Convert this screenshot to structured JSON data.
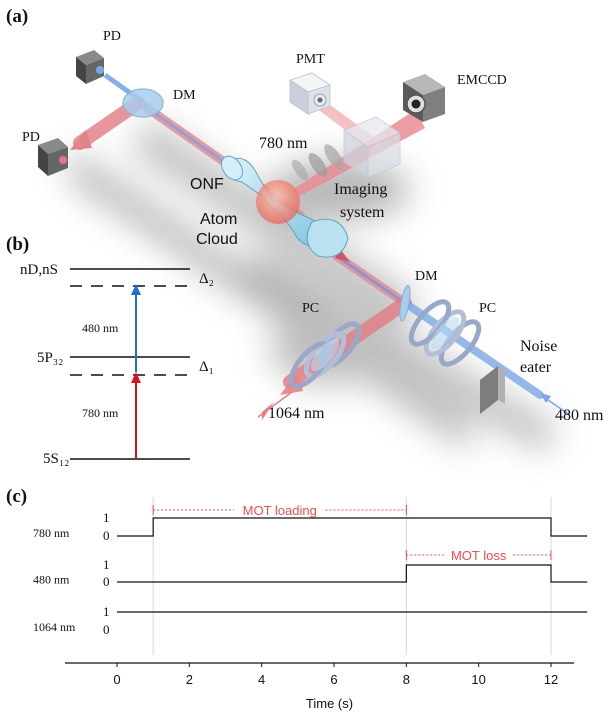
{
  "panels": {
    "a": "(a)",
    "b": "(b)",
    "c": "(c)"
  },
  "setup_labels": {
    "pd_top": "PD",
    "pd_left": "PD",
    "dm_top": "DM",
    "pmt": "PMT",
    "emccd": "EMCCD",
    "wavelength_780": "780 nm",
    "onf": "ONF",
    "imaging_line1": "Imaging",
    "imaging_line2": "system",
    "atom_line1": "Atom",
    "atom_line2": "Cloud",
    "dm_right": "DM",
    "pc_left": "PC",
    "pc_right": "PC",
    "noise_line1": "Noise",
    "noise_line2": "eater",
    "wavelength_1064": "1064 nm",
    "wavelength_480": "480 nm"
  },
  "level_diagram": {
    "level_top": "nD,nS",
    "delta_2": "Δ₂",
    "level_mid": "5P₃₂",
    "delta_1": "Δ₁",
    "level_ground": "5S₁₂",
    "transition_480": "480 nm",
    "transition_780": "780 nm",
    "colors": {
      "blue": "#1f6fd6",
      "red": "#d7141b"
    }
  },
  "chart_data": {
    "type": "line",
    "xlabel": "Time (s)",
    "xlim": [
      0,
      13
    ],
    "xticks": [
      0,
      2,
      4,
      6,
      8,
      10,
      12
    ],
    "channels": [
      {
        "name": "780 nm",
        "ytick_high": "1",
        "ytick_low": "0",
        "steps": [
          [
            0,
            0
          ],
          [
            1,
            1
          ],
          [
            12,
            0
          ],
          [
            13,
            0
          ]
        ]
      },
      {
        "name": "480 nm",
        "ytick_high": "1",
        "ytick_low": "0",
        "steps": [
          [
            0,
            0
          ],
          [
            8,
            1
          ],
          [
            12,
            0
          ],
          [
            13,
            0
          ]
        ]
      },
      {
        "name": "1064 nm",
        "ytick_high": "1",
        "ytick_low": "0",
        "steps": [
          [
            0,
            1
          ],
          [
            13,
            1
          ]
        ]
      }
    ],
    "annotations": [
      {
        "text": "MOT loading",
        "from": 1,
        "to": 8,
        "channel": 0
      },
      {
        "text": "MOT loss",
        "from": 8,
        "to": 12,
        "channel": 1
      }
    ],
    "gridlines": [
      1,
      8,
      12
    ],
    "annotation_color": "#e8504f"
  }
}
